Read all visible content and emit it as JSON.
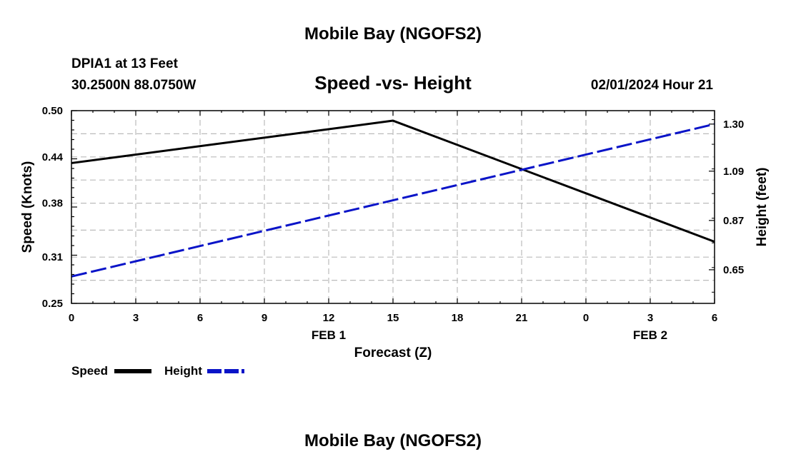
{
  "page": {
    "top_title": "Mobile Bay (NGOFS2)",
    "bottom_title": "Mobile Bay (NGOFS2)",
    "station_line1": "DPIA1 at 13 Feet",
    "station_line2": "30.2500N  88.0750W",
    "timestamp": "02/01/2024 Hour 21"
  },
  "legend": {
    "speed_label": "Speed",
    "height_label": "Height"
  },
  "colors": {
    "speed": "#000000",
    "height": "#0a14c8",
    "grid": "#bbbbbb"
  },
  "chart_data": {
    "type": "line",
    "title": "Speed -vs- Height",
    "xlabel": "Forecast (Z)",
    "ylabel_left": "Speed (Knots)",
    "ylabel_right": "Height (feet)",
    "x_hours": [
      0,
      3,
      6,
      9,
      12,
      15,
      18,
      21,
      24,
      27,
      30
    ],
    "x_tick_labels": [
      "0",
      "3",
      "6",
      "9",
      "12",
      "15",
      "18",
      "21",
      "0",
      "3",
      "6"
    ],
    "date_labels": [
      {
        "label": "FEB 1",
        "at_hour": 12
      },
      {
        "label": "FEB 2",
        "at_hour": 27
      }
    ],
    "xlim": [
      0,
      30
    ],
    "ylim_left": [
      0.25,
      0.5
    ],
    "yticks_left": [
      "0.25",
      "0.31",
      "0.38",
      "0.44",
      "0.50"
    ],
    "ylim_right": [
      0.5,
      1.36
    ],
    "yticks_right": [
      "0.65",
      "0.87",
      "1.09",
      "1.30"
    ],
    "grid": true,
    "series": [
      {
        "name": "Speed",
        "axis": "left",
        "style": "solid",
        "x": [
          0,
          15,
          30
        ],
        "values": [
          0.432,
          0.487,
          0.33
        ]
      },
      {
        "name": "Height",
        "axis": "right",
        "style": "dashed",
        "x": [
          0,
          30
        ],
        "values": [
          0.62,
          1.3
        ]
      }
    ]
  }
}
